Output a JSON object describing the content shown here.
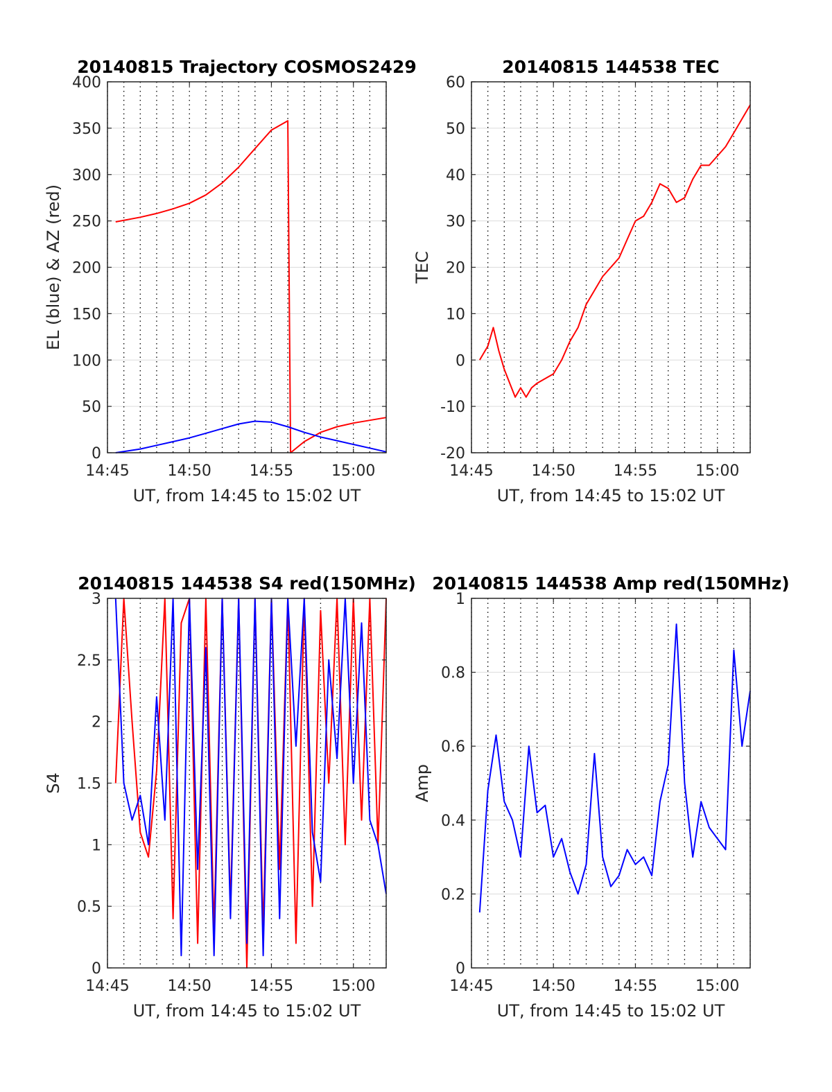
{
  "figure": {
    "background": "#ffffff",
    "grid_color": "#000000",
    "colors": {
      "red": "#ff0000",
      "blue": "#0000ff"
    }
  },
  "chart_data": [
    {
      "type": "line",
      "title": "20140815 Trajectory COSMOS2429",
      "xlabel": "UT, from 14:45 to 15:02 UT",
      "ylabel": "EL (blue) & AZ (red)",
      "xlim": [
        "14:45",
        "15:02"
      ],
      "ylim": [
        0,
        400
      ],
      "xticks": [
        "14:45",
        "14:50",
        "14:55",
        "15:00"
      ],
      "yticks": [
        0,
        50,
        100,
        150,
        200,
        250,
        300,
        350,
        400
      ],
      "grid": "dotted vertical lines every minute, solid horizontal lines at y ticks",
      "series": [
        {
          "color": "#ff0000",
          "x": [
            "14:45:30",
            "14:47",
            "14:48",
            "14:49",
            "14:50",
            "14:51",
            "14:52",
            "14:53",
            "14:54",
            "14:55",
            "14:56",
            "14:56:10",
            "14:57",
            "14:58",
            "14:59",
            "15:00",
            "15:01",
            "15:02"
          ],
          "values": [
            249,
            254,
            258,
            263,
            269,
            278,
            291,
            308,
            328,
            348,
            358,
            0,
            12,
            22,
            28,
            32,
            35,
            38
          ]
        },
        {
          "color": "#0000ff",
          "x": [
            "14:45:30",
            "14:47",
            "14:48",
            "14:49",
            "14:50",
            "14:51",
            "14:52",
            "14:53",
            "14:54",
            "14:55",
            "14:56",
            "14:57",
            "14:58",
            "14:59",
            "15:00",
            "15:01",
            "15:02"
          ],
          "values": [
            0,
            4,
            8,
            12,
            16,
            21,
            26,
            31,
            34,
            33,
            28,
            22,
            17,
            13,
            9,
            5,
            1
          ]
        }
      ]
    },
    {
      "type": "line",
      "title": "20140815 144538 TEC",
      "xlabel": "UT, from 14:45 to 15:02 UT",
      "ylabel": "TEC",
      "xlim": [
        "14:45",
        "15:02"
      ],
      "ylim": [
        -20,
        60
      ],
      "xticks": [
        "14:45",
        "14:50",
        "14:55",
        "15:00"
      ],
      "yticks": [
        -20,
        -10,
        0,
        10,
        20,
        30,
        40,
        50,
        60
      ],
      "grid": "dotted vertical lines every minute, solid horizontal lines at y ticks",
      "series": [
        {
          "color": "#ff0000",
          "x": [
            "14:45:30",
            "14:46",
            "14:46:20",
            "14:46:40",
            "14:47",
            "14:47:20",
            "14:47:40",
            "14:48",
            "14:48:20",
            "14:48:40",
            "14:49",
            "14:49:30",
            "14:50",
            "14:50:30",
            "14:51",
            "14:51:30",
            "14:52",
            "14:52:30",
            "14:53",
            "14:53:30",
            "14:54",
            "14:54:30",
            "14:55",
            "14:55:30",
            "14:56",
            "14:56:30",
            "14:57",
            "14:57:30",
            "14:58",
            "14:58:30",
            "14:59",
            "14:59:30",
            "15:00",
            "15:00:30",
            "15:01",
            "15:01:30",
            "15:02"
          ],
          "values": [
            0,
            3,
            7,
            2,
            -2,
            -5,
            -8,
            -6,
            -8,
            -6,
            -5,
            -4,
            -3,
            0,
            4,
            7,
            12,
            15,
            18,
            20,
            22,
            26,
            30,
            31,
            34,
            38,
            37,
            34,
            35,
            39,
            42,
            42,
            44,
            46,
            49,
            52,
            55
          ]
        }
      ]
    },
    {
      "type": "line",
      "title": "20140815 144538 S4 red(150MHz)",
      "xlabel": "UT, from 14:45 to 15:02 UT",
      "ylabel": "S4",
      "xlim": [
        "14:45",
        "15:02"
      ],
      "ylim": [
        0,
        3
      ],
      "xticks": [
        "14:45",
        "14:50",
        "14:55",
        "15:00"
      ],
      "yticks": [
        0,
        0.5,
        1,
        1.5,
        2,
        2.5,
        3
      ],
      "grid": "dotted vertical lines every minute, solid horizontal lines at y ticks",
      "series": [
        {
          "color": "#ff0000",
          "x": [
            "14:45:30",
            "14:46",
            "14:46:30",
            "14:47",
            "14:47:30",
            "14:48",
            "14:48:30",
            "14:49",
            "14:49:30",
            "14:50",
            "14:50:30",
            "14:51",
            "14:51:30",
            "14:52",
            "14:52:30",
            "14:53",
            "14:53:30",
            "14:54",
            "14:54:30",
            "14:55",
            "14:55:30",
            "14:56",
            "14:56:30",
            "14:57",
            "14:57:30",
            "14:58",
            "14:58:30",
            "14:59",
            "14:59:30",
            "15:00",
            "15:00:30",
            "15:01",
            "15:01:30",
            "15:02"
          ],
          "values": [
            1.5,
            3.0,
            2.0,
            1.1,
            0.9,
            1.6,
            3.0,
            0.4,
            2.8,
            3.0,
            0.2,
            3.0,
            0.3,
            3.0,
            0.5,
            3.0,
            0.0,
            3.0,
            0.3,
            3.0,
            0.8,
            3.0,
            0.2,
            3.0,
            0.5,
            2.9,
            1.5,
            3.0,
            1.0,
            3.0,
            1.2,
            3.0,
            1.0,
            3.0
          ]
        },
        {
          "color": "#0000ff",
          "x": [
            "14:45:30",
            "14:46",
            "14:46:30",
            "14:47",
            "14:47:30",
            "14:48",
            "14:48:30",
            "14:49",
            "14:49:30",
            "14:50",
            "14:50:30",
            "14:51",
            "14:51:30",
            "14:52",
            "14:52:30",
            "14:53",
            "14:53:30",
            "14:54",
            "14:54:30",
            "14:55",
            "14:55:30",
            "14:56",
            "14:56:30",
            "14:57",
            "14:57:30",
            "14:58",
            "14:58:30",
            "14:59",
            "14:59:30",
            "15:00",
            "15:00:30",
            "15:01",
            "15:01:30",
            "15:02"
          ],
          "values": [
            3.0,
            1.5,
            1.2,
            1.4,
            1.0,
            2.2,
            1.2,
            3.0,
            0.1,
            3.0,
            0.8,
            2.6,
            0.1,
            3.0,
            0.4,
            3.0,
            0.2,
            3.0,
            0.1,
            3.0,
            0.4,
            3.0,
            1.8,
            3.0,
            1.1,
            0.7,
            2.5,
            1.7,
            3.0,
            1.5,
            2.8,
            1.2,
            1.0,
            0.6
          ]
        }
      ]
    },
    {
      "type": "line",
      "title": "20140815 144538 Amp red(150MHz)",
      "xlabel": "UT, from 14:45 to 15:02 UT",
      "ylabel": "Amp",
      "xlim": [
        "14:45",
        "15:02"
      ],
      "ylim": [
        0,
        1
      ],
      "xticks": [
        "14:45",
        "14:50",
        "14:55",
        "15:00"
      ],
      "yticks": [
        0,
        0.2,
        0.4,
        0.6,
        0.8,
        1
      ],
      "grid": "dotted vertical lines every minute, solid horizontal lines at y ticks",
      "series": [
        {
          "color": "#0000ff",
          "x": [
            "14:45:30",
            "14:46",
            "14:46:30",
            "14:47",
            "14:47:30",
            "14:48",
            "14:48:30",
            "14:49",
            "14:49:30",
            "14:50",
            "14:50:30",
            "14:51",
            "14:51:30",
            "14:52",
            "14:52:30",
            "14:53",
            "14:53:30",
            "14:54",
            "14:54:30",
            "14:55",
            "14:55:30",
            "14:56",
            "14:56:30",
            "14:57",
            "14:57:30",
            "14:58",
            "14:58:30",
            "14:59",
            "14:59:30",
            "15:00",
            "15:00:30",
            "15:01",
            "15:01:30",
            "15:02"
          ],
          "values": [
            0.15,
            0.48,
            0.63,
            0.45,
            0.4,
            0.3,
            0.6,
            0.42,
            0.44,
            0.3,
            0.35,
            0.26,
            0.2,
            0.28,
            0.58,
            0.3,
            0.22,
            0.25,
            0.32,
            0.28,
            0.3,
            0.25,
            0.45,
            0.55,
            0.93,
            0.5,
            0.3,
            0.45,
            0.38,
            0.35,
            0.32,
            0.86,
            0.6,
            0.75
          ]
        }
      ]
    }
  ]
}
